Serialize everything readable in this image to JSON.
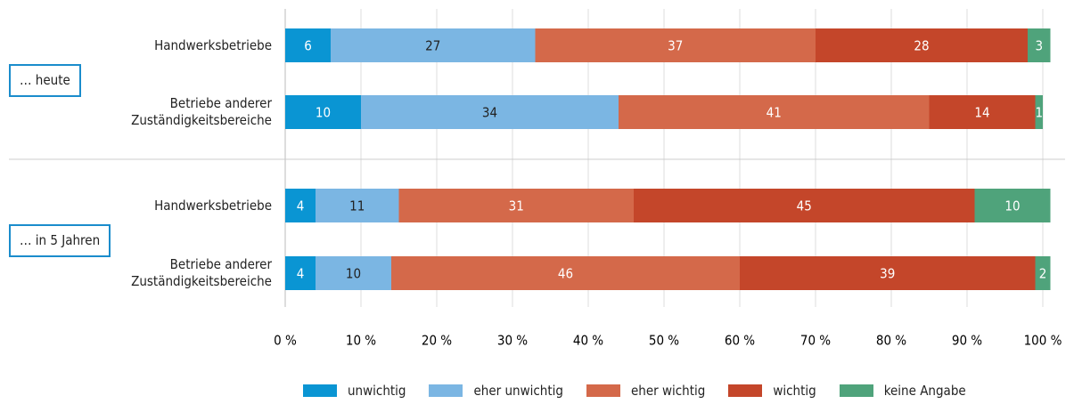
{
  "chart_data": {
    "type": "stacked-bar-horizontal",
    "groups": [
      "… heute",
      "… in 5 Jahren"
    ],
    "categories": [
      "Handwerksbetriebe",
      "Betriebe anderer Zuständigkeitsbereiche",
      "Handwerksbetriebe",
      "Betriebe anderer Zuständigkeitsbereiche"
    ],
    "series": [
      {
        "name": "unwichtig",
        "color": "#0a95d3",
        "values": [
          6,
          10,
          4,
          4
        ]
      },
      {
        "name": "eher unwichtig",
        "color": "#7bb6e3",
        "values": [
          27,
          34,
          11,
          10
        ]
      },
      {
        "name": "eher wichtig",
        "color": "#d4694a",
        "values": [
          37,
          41,
          31,
          46
        ]
      },
      {
        "name": "wichtig",
        "color": "#c4462a",
        "values": [
          28,
          14,
          45,
          39
        ]
      },
      {
        "name": "keine Angabe",
        "color": "#4fa37b",
        "values": [
          3,
          1,
          10,
          2
        ]
      }
    ],
    "xlim": [
      0,
      100
    ],
    "xticks": [
      {
        "value": 0,
        "label": "0 %"
      },
      {
        "value": 10,
        "label": "10 %"
      },
      {
        "value": 20,
        "label": "20 %"
      },
      {
        "value": 30,
        "label": "30 %"
      },
      {
        "value": 40,
        "label": "40 %"
      },
      {
        "value": 50,
        "label": "50 %"
      },
      {
        "value": 60,
        "label": "60 %"
      },
      {
        "value": 70,
        "label": "70 %"
      },
      {
        "value": 80,
        "label": "80 %"
      },
      {
        "value": 90,
        "label": "90 %"
      },
      {
        "value": 100,
        "label": "100 %"
      }
    ],
    "grid": true,
    "legend": "bottom"
  }
}
